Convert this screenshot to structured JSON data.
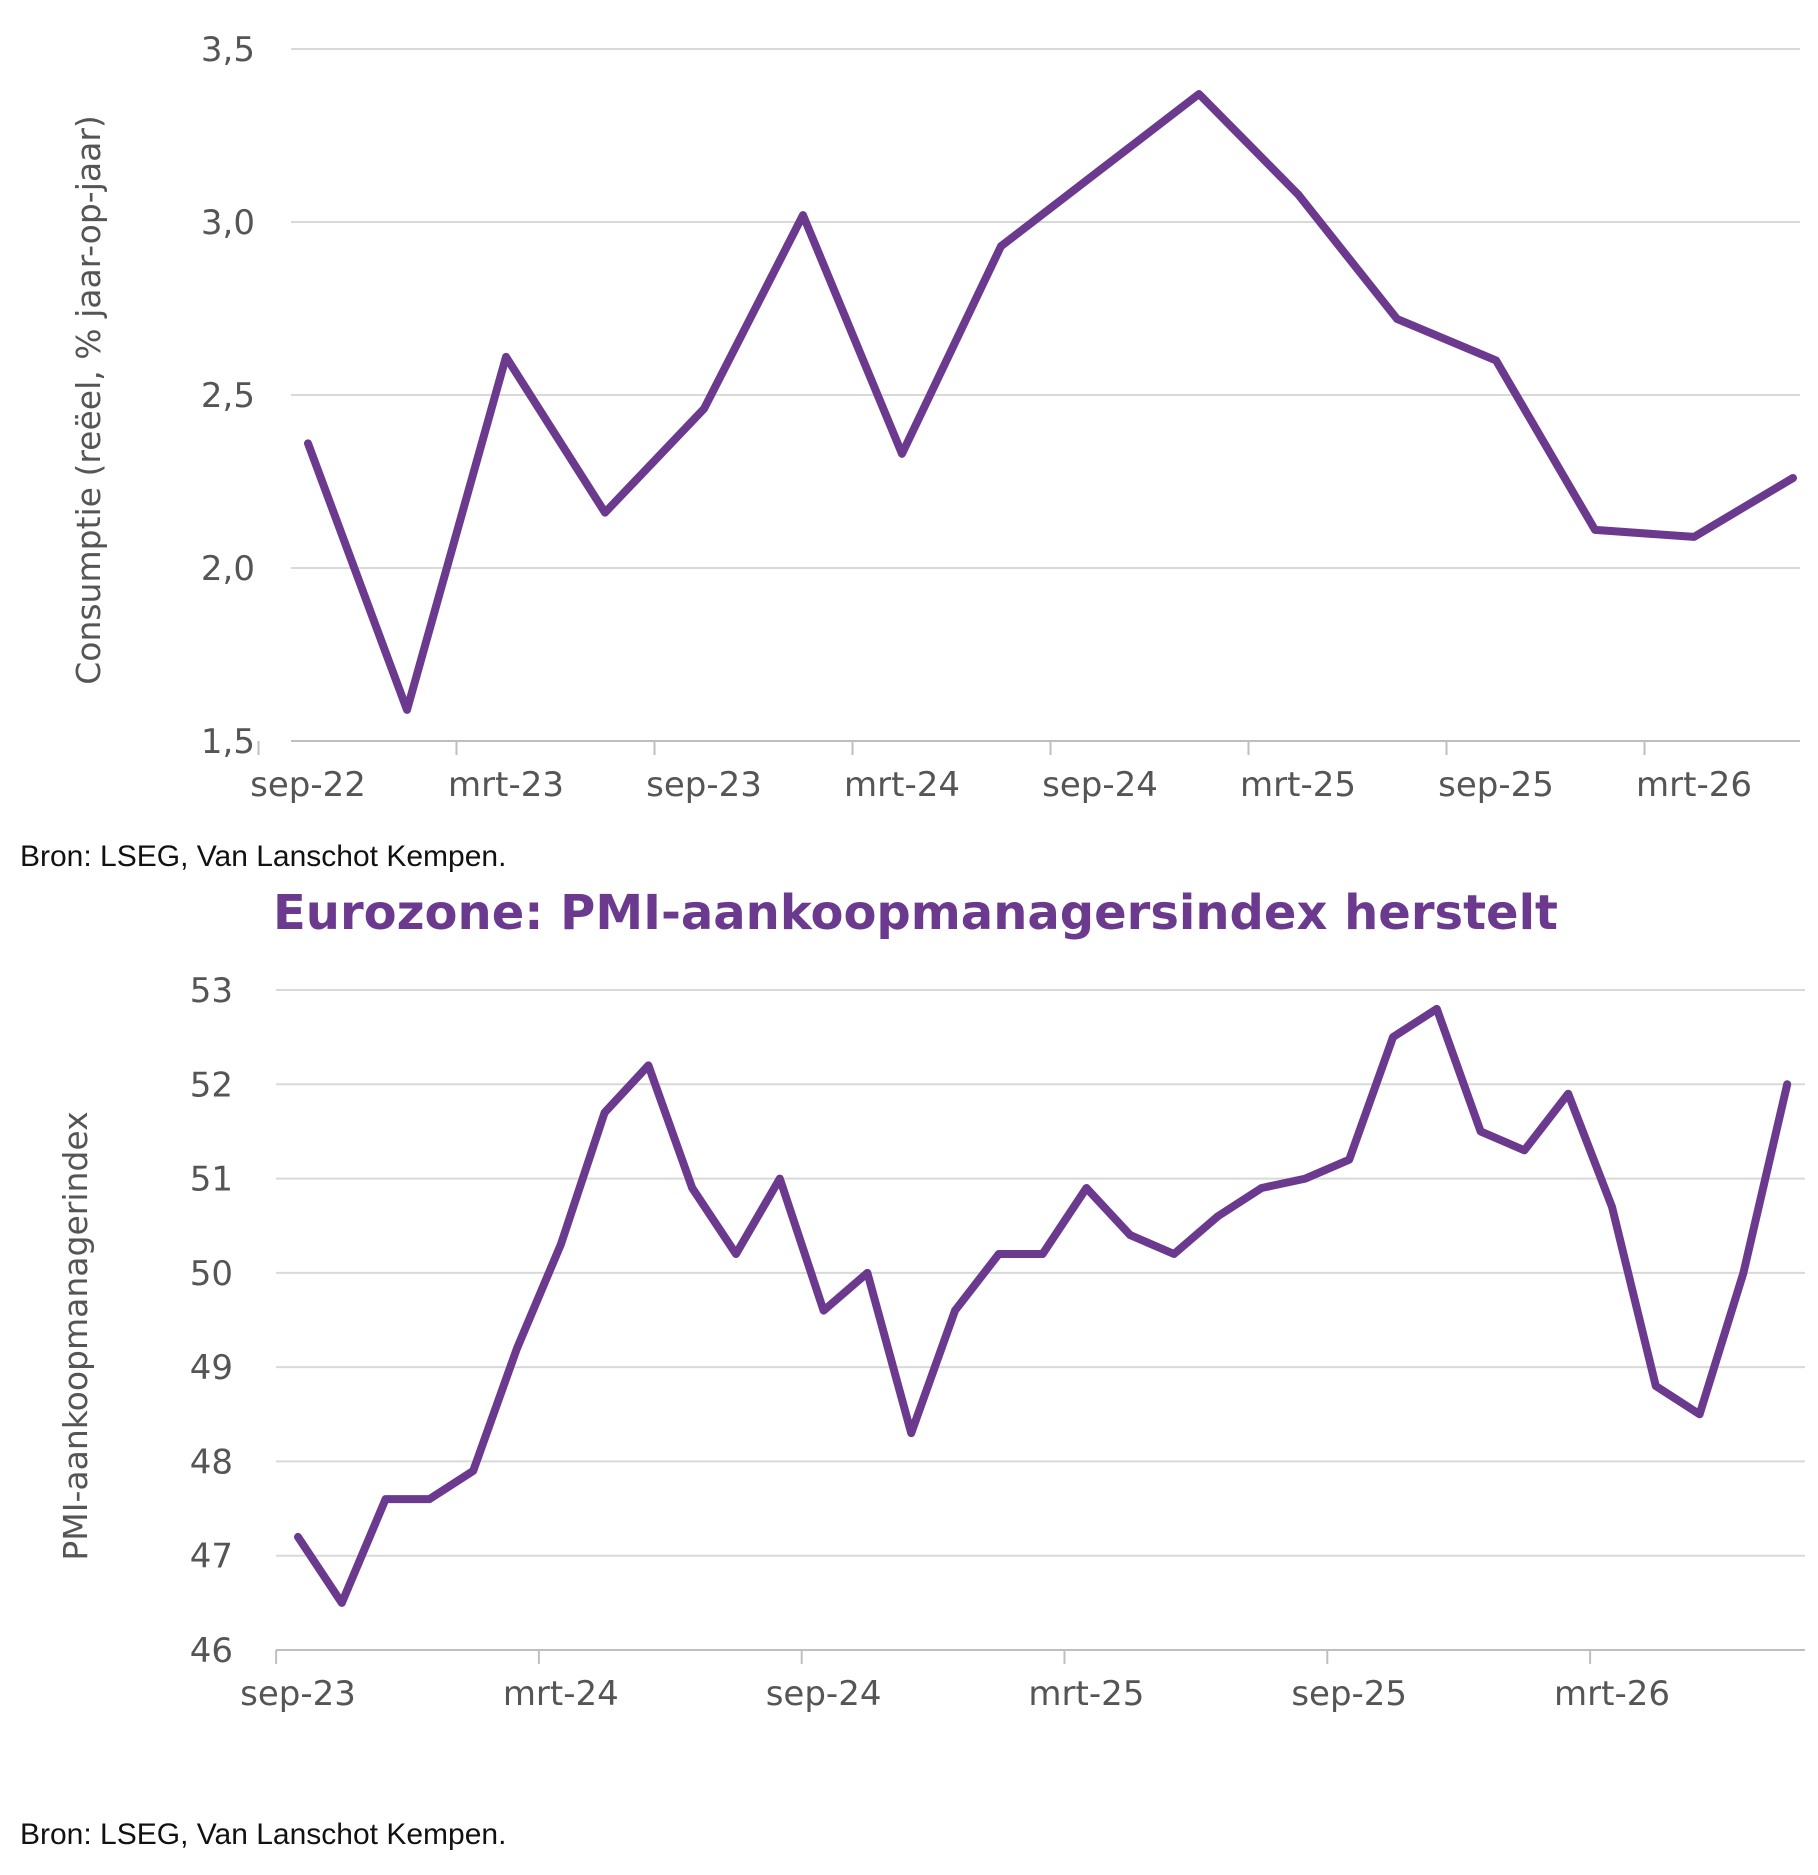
{
  "colors": {
    "line": "#6b3a8e",
    "grid": "#d9d9d9",
    "axis": "#bfbfbf",
    "text": "#555555",
    "title": "#6b3a8e"
  },
  "chart_data": [
    {
      "type": "line",
      "title": "",
      "ylabel": "Consumptie (reëel, % jaar-op-jaar)",
      "xlabel": "",
      "ylim": [
        1.5,
        3.5
      ],
      "yticks": [
        "1,5",
        "2,0",
        "2,5",
        "3,0",
        "3,5"
      ],
      "ytick_values": [
        1.5,
        2.0,
        2.5,
        3.0,
        3.5
      ],
      "xticks": [
        "sep-22",
        "mrt-23",
        "sep-23",
        "mrt-24",
        "sep-24",
        "mrt-25",
        "sep-25",
        "mrt-26"
      ],
      "x_frequency": "quarterly",
      "grid": true,
      "legend": "none",
      "source": "Bron: LSEG, Van Lanschot Kempen.",
      "series": [
        {
          "x": [
            "sep-22",
            "dec-22",
            "mrt-23",
            "jun-23",
            "sep-23",
            "dec-23",
            "mrt-24",
            "jun-24",
            "sep-24",
            "dec-24",
            "mrt-25",
            "jun-25",
            "sep-25",
            "dec-25",
            "mrt-26",
            "jun-26"
          ],
          "values": [
            2.36,
            1.59,
            2.61,
            2.16,
            2.46,
            3.02,
            2.33,
            2.93,
            3.15,
            3.37,
            3.08,
            2.72,
            2.6,
            2.11,
            2.09,
            2.26
          ]
        }
      ]
    },
    {
      "type": "line",
      "title": "Eurozone: PMI-aankoopmanagersindex herstelt",
      "ylabel": "PMI-aankoopmanagerindex",
      "xlabel": "",
      "ylim": [
        46,
        53
      ],
      "yticks": [
        "46",
        "47",
        "48",
        "49",
        "50",
        "51",
        "52",
        "53"
      ],
      "ytick_values": [
        46,
        47,
        48,
        49,
        50,
        51,
        52,
        53
      ],
      "xticks": [
        "sep-23",
        "mrt-24",
        "sep-24",
        "mrt-25",
        "sep-25",
        "mrt-26"
      ],
      "x_frequency": "monthly",
      "grid": true,
      "legend": "none",
      "source": "Bron: LSEG, Van Lanschot Kempen.",
      "series": [
        {
          "x": [
            "sep-23",
            "okt-23",
            "nov-23",
            "dec-23",
            "jan-24",
            "feb-24",
            "mrt-24",
            "apr-24",
            "mei-24",
            "jun-24",
            "jul-24",
            "aug-24",
            "sep-24",
            "okt-24",
            "nov-24",
            "dec-24",
            "jan-25",
            "feb-25",
            "mrt-25",
            "apr-25",
            "mei-25",
            "jun-25",
            "jul-25",
            "aug-25",
            "sep-25",
            "okt-25",
            "nov-25",
            "dec-25",
            "jan-26",
            "feb-26",
            "mrt-26",
            "apr-26",
            "mei-26",
            "jun-26",
            "jul-26"
          ],
          "values": [
            47.2,
            46.5,
            47.6,
            47.6,
            47.9,
            49.2,
            50.3,
            51.7,
            52.2,
            50.9,
            50.2,
            51.0,
            49.6,
            50.0,
            48.3,
            49.6,
            50.2,
            50.2,
            50.9,
            50.4,
            50.2,
            50.6,
            50.9,
            51.0,
            51.2,
            52.5,
            52.8,
            51.5,
            51.3,
            51.9,
            50.7,
            48.8,
            48.5,
            50.0,
            52.0
          ]
        }
      ]
    }
  ]
}
